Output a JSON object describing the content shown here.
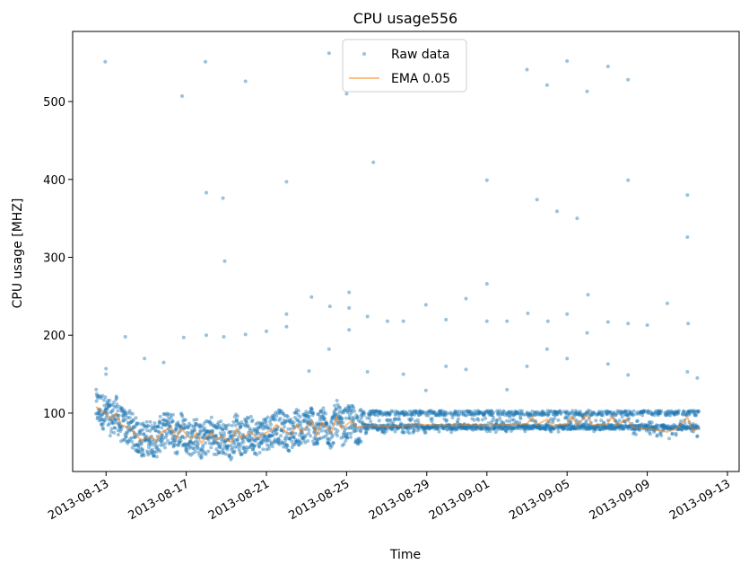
{
  "chart_data": {
    "type": "scatter",
    "title": "CPU usage556",
    "xlabel": "Time",
    "ylabel": "CPU usage [MHZ]",
    "x_range": [
      "2013-08-11T08:00",
      "2013-09-13T14:00"
    ],
    "ylim": [
      25,
      590
    ],
    "x_ticks": [
      "2013-08-13",
      "2013-08-17",
      "2013-08-21",
      "2013-08-25",
      "2013-08-29",
      "2013-09-01",
      "2013-09-05",
      "2013-09-09",
      "2013-09-13"
    ],
    "y_ticks": [
      100,
      200,
      300,
      400,
      500
    ],
    "grid": false,
    "legend": {
      "placement": "top-center",
      "entries": [
        "Raw data",
        "EMA 0.05"
      ]
    },
    "colors": {
      "raw": "#1f77b4",
      "ema": "#ff7f0e",
      "axis": "#000000"
    },
    "series": [
      {
        "name": "Raw data",
        "kind": "scatter",
        "outliers": [
          [
            "2013-08-12T23:00",
            551
          ],
          [
            "2013-08-13T23:00",
            198
          ],
          [
            "2013-08-14T22:00",
            170
          ],
          [
            "2013-08-15T21:00",
            165
          ],
          [
            "2013-08-16T21:00",
            197
          ],
          [
            "2013-08-16T19:00",
            507
          ],
          [
            "2013-08-17T23:00",
            551
          ],
          [
            "2013-08-18T00:00",
            383
          ],
          [
            "2013-08-18T00:00",
            200
          ],
          [
            "2013-08-18T20:00",
            376
          ],
          [
            "2013-08-18T22:00",
            295
          ],
          [
            "2013-08-18T21:00",
            198
          ],
          [
            "2013-08-19T23:00",
            526
          ],
          [
            "2013-08-19T23:00",
            201
          ],
          [
            "2013-08-21T00:00",
            205
          ],
          [
            "2013-08-22T00:00",
            397
          ],
          [
            "2013-08-22T00:00",
            227
          ],
          [
            "2013-08-22T00:00",
            211
          ],
          [
            "2013-08-23T03:00",
            154
          ],
          [
            "2013-08-23T06:00",
            249
          ],
          [
            "2013-08-24T03:00",
            562
          ],
          [
            "2013-08-24T04:00",
            237
          ],
          [
            "2013-08-24T03:00",
            182
          ],
          [
            "2013-08-25T00:00",
            510
          ],
          [
            "2013-08-25T03:00",
            255
          ],
          [
            "2013-08-25T03:00",
            235
          ],
          [
            "2013-08-25T03:00",
            207
          ],
          [
            "2013-08-26T01:00",
            224
          ],
          [
            "2013-08-26T01:00",
            153
          ],
          [
            "2013-08-26T08:00",
            422
          ],
          [
            "2013-08-27T01:00",
            218
          ],
          [
            "2013-08-27T20:00",
            218
          ],
          [
            "2013-08-27T20:00",
            150
          ],
          [
            "2013-08-28T23:00",
            239
          ],
          [
            "2013-08-28T23:00",
            129
          ],
          [
            "2013-08-29T23:00",
            220
          ],
          [
            "2013-08-29T23:00",
            160
          ],
          [
            "2013-08-30T23:00",
            247
          ],
          [
            "2013-08-30T23:00",
            156
          ],
          [
            "2013-09-01T00:00",
            399
          ],
          [
            "2013-09-01T00:00",
            266
          ],
          [
            "2013-09-01T00:00",
            218
          ],
          [
            "2013-09-02T00:00",
            218
          ],
          [
            "2013-09-02T00:00",
            130
          ],
          [
            "2013-09-03T00:00",
            541
          ],
          [
            "2013-09-03T01:00",
            228
          ],
          [
            "2013-09-03T00:00",
            160
          ],
          [
            "2013-09-03T12:00",
            374
          ],
          [
            "2013-09-04T00:00",
            521
          ],
          [
            "2013-09-04T01:00",
            218
          ],
          [
            "2013-09-04T00:00",
            182
          ],
          [
            "2013-09-04T12:00",
            359
          ],
          [
            "2013-09-05T00:00",
            552
          ],
          [
            "2013-09-05T00:00",
            227
          ],
          [
            "2013-09-05T00:00",
            170
          ],
          [
            "2013-09-05T12:00",
            350
          ],
          [
            "2013-09-06T00:00",
            513
          ],
          [
            "2013-09-06T01:00",
            252
          ],
          [
            "2013-09-06T00:00",
            203
          ],
          [
            "2013-09-07T01:00",
            545
          ],
          [
            "2013-09-07T01:00",
            217
          ],
          [
            "2013-09-07T01:00",
            163
          ],
          [
            "2013-09-08T01:00",
            528
          ],
          [
            "2013-09-08T01:00",
            399
          ],
          [
            "2013-09-08T01:00",
            215
          ],
          [
            "2013-09-08T01:00",
            149
          ],
          [
            "2013-09-09T00:00",
            213
          ],
          [
            "2013-09-10T00:00",
            241
          ],
          [
            "2013-09-11T00:00",
            380
          ],
          [
            "2013-09-11T00:00",
            326
          ],
          [
            "2013-09-11T01:00",
            215
          ],
          [
            "2013-09-11T00:00",
            153
          ],
          [
            "2013-09-11T12:00",
            145
          ],
          [
            "2013-08-13T00:00",
            157
          ],
          [
            "2013-08-13T00:00",
            150
          ]
        ]
      },
      {
        "name": "EMA 0.05",
        "kind": "line",
        "points": [
          [
            "2013-08-12T12:00",
            108
          ],
          [
            "2013-08-12T23:00",
            100
          ],
          [
            "2013-08-13T06:00",
            92
          ],
          [
            "2013-08-13T12:00",
            100
          ],
          [
            "2013-08-13T18:00",
            85
          ],
          [
            "2013-08-14T06:00",
            80
          ],
          [
            "2013-08-14T12:00",
            72
          ],
          [
            "2013-08-14T18:00",
            65
          ],
          [
            "2013-08-15T06:00",
            70
          ],
          [
            "2013-08-15T12:00",
            64
          ],
          [
            "2013-08-15T18:00",
            75
          ],
          [
            "2013-08-16T06:00",
            82
          ],
          [
            "2013-08-16T12:00",
            68
          ],
          [
            "2013-08-16T18:00",
            80
          ],
          [
            "2013-08-17T06:00",
            66
          ],
          [
            "2013-08-17T12:00",
            74
          ],
          [
            "2013-08-17T18:00",
            62
          ],
          [
            "2013-08-18T06:00",
            75
          ],
          [
            "2013-08-18T12:00",
            65
          ],
          [
            "2013-08-18T18:00",
            70
          ],
          [
            "2013-08-19T06:00",
            62
          ],
          [
            "2013-08-19T12:00",
            80
          ],
          [
            "2013-08-19T18:00",
            68
          ],
          [
            "2013-08-20T06:00",
            75
          ],
          [
            "2013-08-20T12:00",
            68
          ],
          [
            "2013-08-20T18:00",
            72
          ],
          [
            "2013-08-21T06:00",
            78
          ],
          [
            "2013-08-21T12:00",
            85
          ],
          [
            "2013-08-21T18:00",
            80
          ],
          [
            "2013-08-22T06:00",
            72
          ],
          [
            "2013-08-22T12:00",
            85
          ],
          [
            "2013-08-22T18:00",
            75
          ],
          [
            "2013-08-23T06:00",
            90
          ],
          [
            "2013-08-23T12:00",
            72
          ],
          [
            "2013-08-23T18:00",
            88
          ],
          [
            "2013-08-24T06:00",
            75
          ],
          [
            "2013-08-24T12:00",
            95
          ],
          [
            "2013-08-24T18:00",
            80
          ],
          [
            "2013-08-25T06:00",
            90
          ],
          [
            "2013-08-25T12:00",
            82
          ],
          [
            "2013-08-26T00:00",
            84
          ],
          [
            "2013-08-27T00:00",
            83
          ],
          [
            "2013-08-28T00:00",
            84
          ],
          [
            "2013-08-29T00:00",
            85
          ],
          [
            "2013-08-30T00:00",
            84
          ],
          [
            "2013-08-31T00:00",
            85
          ],
          [
            "2013-09-01T00:00",
            84
          ],
          [
            "2013-09-02T00:00",
            85
          ],
          [
            "2013-09-03T00:00",
            86
          ],
          [
            "2013-09-03T06:00",
            95
          ],
          [
            "2013-09-03T12:00",
            85
          ],
          [
            "2013-09-04T00:00",
            92
          ],
          [
            "2013-09-04T06:00",
            84
          ],
          [
            "2013-09-05T00:00",
            86
          ],
          [
            "2013-09-05T06:00",
            96
          ],
          [
            "2013-09-05T12:00",
            84
          ],
          [
            "2013-09-06T00:00",
            98
          ],
          [
            "2013-09-06T06:00",
            84
          ],
          [
            "2013-09-07T00:00",
            86
          ],
          [
            "2013-09-07T06:00",
            96
          ],
          [
            "2013-09-07T12:00",
            84
          ],
          [
            "2013-09-08T00:00",
            93
          ],
          [
            "2013-09-08T06:00",
            82
          ],
          [
            "2013-09-09T00:00",
            80
          ],
          [
            "2013-09-10T00:00",
            76
          ],
          [
            "2013-09-10T12:00",
            80
          ],
          [
            "2013-09-11T00:00",
            95
          ],
          [
            "2013-09-11T06:00",
            78
          ],
          [
            "2013-09-11T14:00",
            80
          ]
        ]
      }
    ]
  }
}
